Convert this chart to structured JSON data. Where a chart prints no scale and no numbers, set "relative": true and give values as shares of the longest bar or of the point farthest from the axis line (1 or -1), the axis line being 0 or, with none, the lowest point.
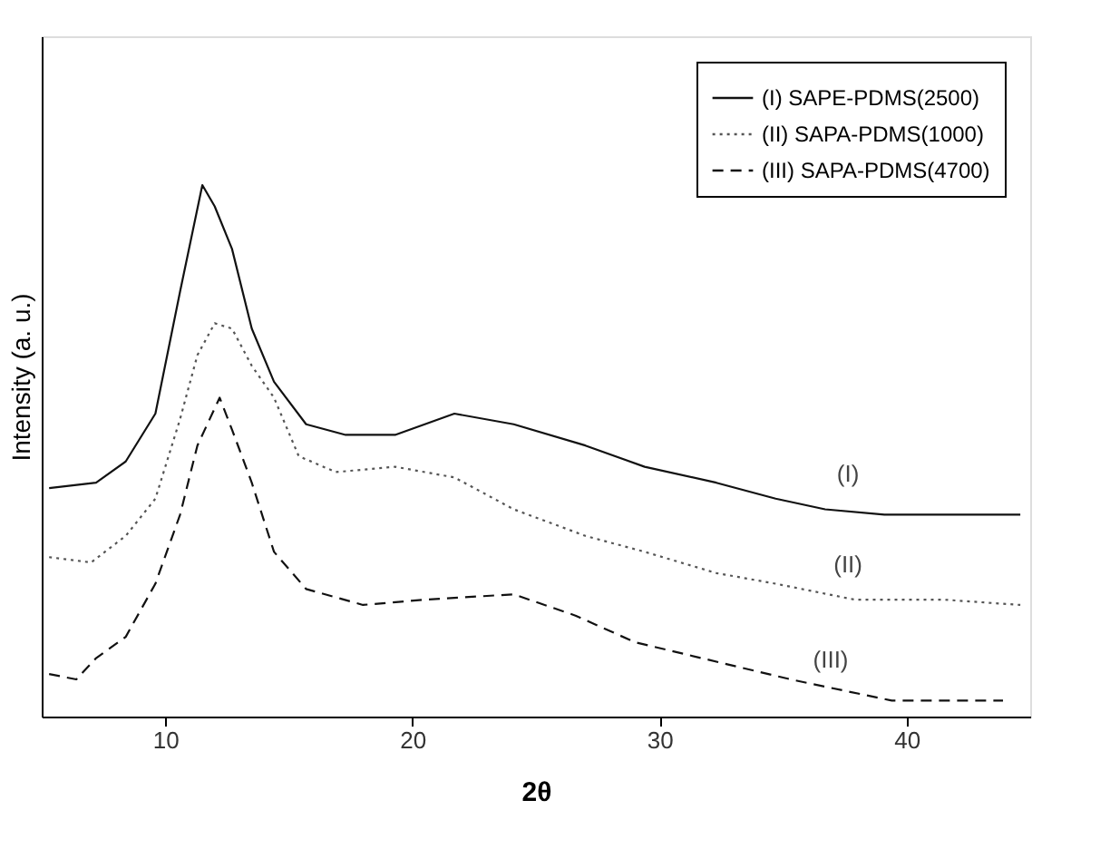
{
  "chart_data": {
    "type": "line",
    "relative": true,
    "xlabel": "2θ",
    "ylabel": "Intensity (a. u.)",
    "xlim": [
      5,
      45
    ],
    "xticks": [
      10,
      20,
      30,
      40
    ],
    "legend": "top right",
    "grid": false,
    "marker": "none",
    "series": [
      {
        "name": "(I) SAPE-PDMS(2500)",
        "color": "#111111",
        "line_style": "solid",
        "x": [
          5.3,
          7.2,
          8.4,
          9.6,
          10.6,
          11.5,
          12.0,
          12.7,
          13.5,
          14.4,
          15.7,
          17.3,
          19.3,
          21.7,
          24.1,
          27.0,
          29.4,
          32.3,
          34.7,
          36.7,
          39.1,
          41.5,
          44.6
        ],
        "values": [
          0.43,
          0.44,
          0.48,
          0.57,
          0.8,
          1.0,
          0.96,
          0.88,
          0.73,
          0.63,
          0.55,
          0.53,
          0.53,
          0.57,
          0.55,
          0.51,
          0.47,
          0.44,
          0.41,
          0.39,
          0.38,
          0.38,
          0.38
        ]
      },
      {
        "name": "(II) SAPA-PDMS(1000)",
        "color": "#555555",
        "line_style": "dotted",
        "x": [
          5.3,
          7.0,
          8.4,
          9.6,
          10.6,
          11.3,
          12.0,
          12.7,
          13.5,
          14.4,
          15.4,
          16.9,
          19.3,
          21.7,
          24.1,
          27.0,
          29.4,
          32.3,
          34.7,
          37.9,
          41.5,
          44.6
        ],
        "values": [
          0.3,
          0.29,
          0.34,
          0.41,
          0.56,
          0.68,
          0.74,
          0.73,
          0.66,
          0.6,
          0.49,
          0.46,
          0.47,
          0.45,
          0.39,
          0.34,
          0.31,
          0.27,
          0.25,
          0.22,
          0.22,
          0.21
        ]
      },
      {
        "name": "(III) SAPA-PDMS(4700)",
        "color": "#111111",
        "line_style": "dashed",
        "x": [
          5.3,
          6.4,
          7.2,
          8.4,
          9.6,
          10.6,
          11.3,
          12.2,
          12.7,
          13.5,
          14.4,
          15.7,
          18.0,
          20.5,
          24.1,
          26.6,
          29.0,
          32.6,
          35.3,
          39.4,
          43.9
        ],
        "values": [
          0.08,
          0.07,
          0.11,
          0.15,
          0.25,
          0.38,
          0.51,
          0.6,
          0.54,
          0.44,
          0.31,
          0.24,
          0.21,
          0.22,
          0.23,
          0.19,
          0.14,
          0.1,
          0.07,
          0.03,
          0.03
        ]
      }
    ],
    "annotations": [
      "(I)",
      "(II)",
      "(III)"
    ]
  }
}
